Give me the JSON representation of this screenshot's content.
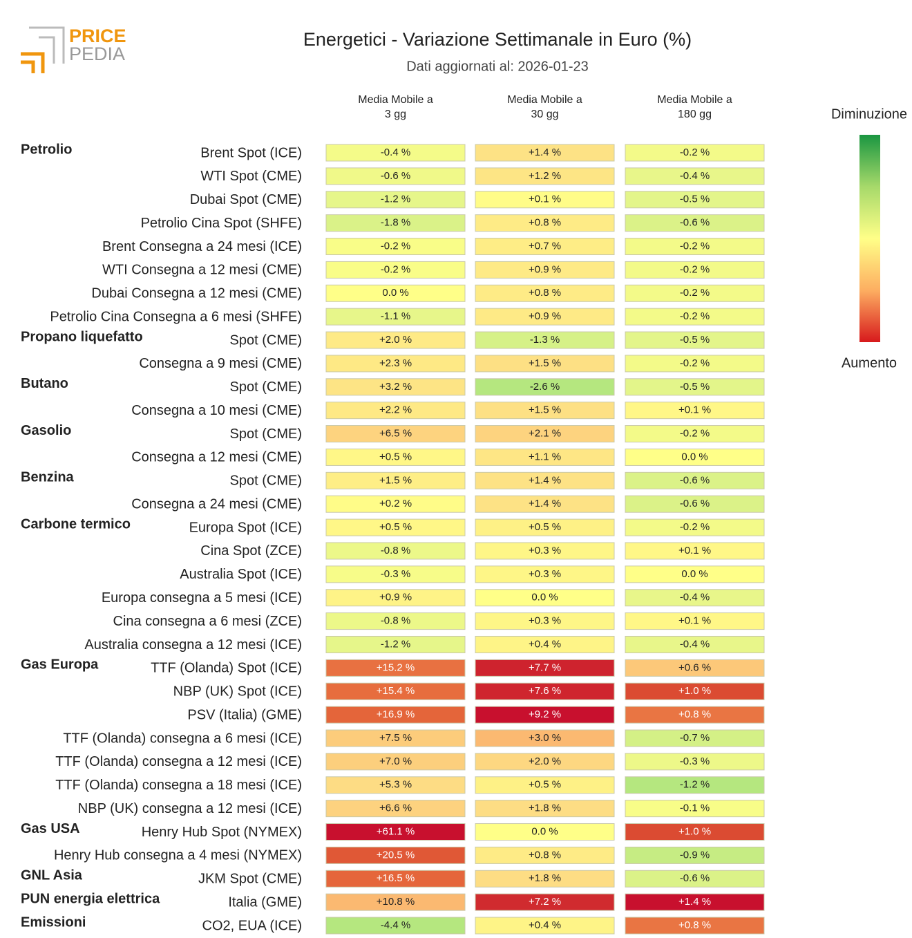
{
  "logo": [
    "PRICE",
    "PEDIA"
  ],
  "chart_data": {
    "type": "heatmap",
    "title": "Energetici - Variazione Settimanale in Euro (%)",
    "subtitle": "Dati aggiornati al: 2026-01-23",
    "columns": [
      [
        "Media Mobile a",
        "3 gg"
      ],
      [
        "Media Mobile a",
        "30 gg"
      ],
      [
        "Media Mobile a",
        "180 gg"
      ]
    ],
    "legend_labels": [
      "Diminuzione",
      "Aumento"
    ],
    "groups": [
      "Petrolio",
      null,
      null,
      null,
      null,
      null,
      null,
      null,
      "Propano liquefatto",
      null,
      "Butano",
      null,
      "Gasolio",
      null,
      "Benzina",
      null,
      "Carbone termico",
      null,
      null,
      null,
      null,
      null,
      "Gas Europa",
      null,
      null,
      null,
      null,
      null,
      null,
      "Gas USA",
      null,
      "GNL Asia",
      "PUN energia elettrica",
      "Emissioni"
    ],
    "rows": [
      "Brent Spot (ICE)",
      "WTI Spot (CME)",
      "Dubai Spot (CME)",
      "Petrolio Cina Spot (SHFE)",
      "Brent Consegna a 24 mesi (ICE)",
      "WTI Consegna a 12 mesi (CME)",
      "Dubai Consegna a 12 mesi (CME)",
      "Petrolio Cina Consegna a 6 mesi (SHFE)",
      "Spot (CME)",
      "Consegna a 9 mesi (CME)",
      "Spot (CME)",
      "Consegna a 10 mesi (CME)",
      "Spot (CME)",
      "Consegna a 12 mesi (CME)",
      "Spot (CME)",
      "Consegna a 24 mesi (CME)",
      "Europa Spot (ICE)",
      "Cina Spot (ZCE)",
      "Australia Spot (ICE)",
      "Europa consegna a 5 mesi (ICE)",
      "Cina consegna a 6 mesi (ZCE)",
      "Australia consegna a 12 mesi (ICE)",
      "TTF (Olanda) Spot (ICE)",
      "NBP (UK) Spot (ICE)",
      "PSV (Italia) (GME)",
      "TTF (Olanda) consegna a 6 mesi (ICE)",
      "TTF (Olanda) consegna a 12 mesi (ICE)",
      "TTF (Olanda) consegna a 18 mesi (ICE)",
      "NBP (UK) consegna a 12 mesi (ICE)",
      "Henry Hub Spot (NYMEX)",
      "Henry Hub consegna a 4 mesi (NYMEX)",
      "JKM Spot (CME)",
      "Italia (GME)",
      "CO2, EUA (ICE)"
    ],
    "values": [
      [
        -0.4,
        1.4,
        -0.2
      ],
      [
        -0.6,
        1.2,
        -0.4
      ],
      [
        -1.2,
        0.1,
        -0.5
      ],
      [
        -1.8,
        0.8,
        -0.6
      ],
      [
        -0.2,
        0.7,
        -0.2
      ],
      [
        -0.2,
        0.9,
        -0.2
      ],
      [
        0.0,
        0.8,
        -0.2
      ],
      [
        -1.1,
        0.9,
        -0.2
      ],
      [
        2.0,
        -1.3,
        -0.5
      ],
      [
        2.3,
        1.5,
        -0.2
      ],
      [
        3.2,
        -2.6,
        -0.5
      ],
      [
        2.2,
        1.5,
        0.1
      ],
      [
        6.5,
        2.1,
        -0.2
      ],
      [
        0.5,
        1.1,
        0.0
      ],
      [
        1.5,
        1.4,
        -0.6
      ],
      [
        0.2,
        1.4,
        -0.6
      ],
      [
        0.5,
        0.5,
        -0.2
      ],
      [
        -0.8,
        0.3,
        0.1
      ],
      [
        -0.3,
        0.3,
        0.0
      ],
      [
        0.9,
        0.0,
        -0.4
      ],
      [
        -0.8,
        0.3,
        0.1
      ],
      [
        -1.2,
        0.4,
        -0.4
      ],
      [
        15.2,
        7.7,
        0.6
      ],
      [
        15.4,
        7.6,
        1.0
      ],
      [
        16.9,
        9.2,
        0.8
      ],
      [
        7.5,
        3.0,
        -0.7
      ],
      [
        7.0,
        2.0,
        -0.3
      ],
      [
        5.3,
        0.5,
        -1.2
      ],
      [
        6.6,
        1.8,
        -0.1
      ],
      [
        61.1,
        0.0,
        1.0
      ],
      [
        20.5,
        0.8,
        -0.9
      ],
      [
        16.5,
        1.8,
        -0.6
      ],
      [
        10.8,
        7.2,
        1.4
      ],
      [
        -4.4,
        0.4,
        0.8
      ]
    ],
    "value_labels": [
      [
        "-0.4 %",
        "+1.4 %",
        "-0.2 %"
      ],
      [
        "-0.6 %",
        "+1.2 %",
        "-0.4 %"
      ],
      [
        "-1.2 %",
        "+0.1 %",
        "-0.5 %"
      ],
      [
        "-1.8 %",
        "+0.8 %",
        "-0.6 %"
      ],
      [
        "-0.2 %",
        "+0.7 %",
        "-0.2 %"
      ],
      [
        "-0.2 %",
        "+0.9 %",
        "-0.2 %"
      ],
      [
        "0.0 %",
        "+0.8 %",
        "-0.2 %"
      ],
      [
        "-1.1 %",
        "+0.9 %",
        "-0.2 %"
      ],
      [
        "+2.0 %",
        "-1.3 %",
        "-0.5 %"
      ],
      [
        "+2.3 %",
        "+1.5 %",
        "-0.2 %"
      ],
      [
        "+3.2 %",
        "-2.6 %",
        "-0.5 %"
      ],
      [
        "+2.2 %",
        "+1.5 %",
        "+0.1 %"
      ],
      [
        "+6.5 %",
        "+2.1 %",
        "-0.2 %"
      ],
      [
        "+0.5 %",
        "+1.1 %",
        "0.0 %"
      ],
      [
        "+1.5 %",
        "+1.4 %",
        "-0.6 %"
      ],
      [
        "+0.2 %",
        "+1.4 %",
        "-0.6 %"
      ],
      [
        "+0.5 %",
        "+0.5 %",
        "-0.2 %"
      ],
      [
        "-0.8 %",
        "+0.3 %",
        "+0.1 %"
      ],
      [
        "-0.3 %",
        "+0.3 %",
        "0.0 %"
      ],
      [
        "+0.9 %",
        "0.0 %",
        "-0.4 %"
      ],
      [
        "-0.8 %",
        "+0.3 %",
        "+0.1 %"
      ],
      [
        "-1.2 %",
        "+0.4 %",
        "-0.4 %"
      ],
      [
        "+15.2 %",
        "+7.7 %",
        "+0.6 %"
      ],
      [
        "+15.4 %",
        "+7.6 %",
        "+1.0 %"
      ],
      [
        "+16.9 %",
        "+9.2 %",
        "+0.8 %"
      ],
      [
        "+7.5 %",
        "+3.0 %",
        "-0.7 %"
      ],
      [
        "+7.0 %",
        "+2.0 %",
        "-0.3 %"
      ],
      [
        "+5.3 %",
        "+0.5 %",
        "-1.2 %"
      ],
      [
        "+6.6 %",
        "+1.8 %",
        "-0.1 %"
      ],
      [
        "+61.1 %",
        "0.0 %",
        "+1.0 %"
      ],
      [
        "+20.5 %",
        "+0.8 %",
        "-0.9 %"
      ],
      [
        "+16.5 %",
        "+1.8 %",
        "-0.6 %"
      ],
      [
        "+10.8 %",
        "+7.2 %",
        "+1.4 %"
      ],
      [
        "-4.4 %",
        "+0.4 %",
        "+0.8 %"
      ]
    ]
  }
}
